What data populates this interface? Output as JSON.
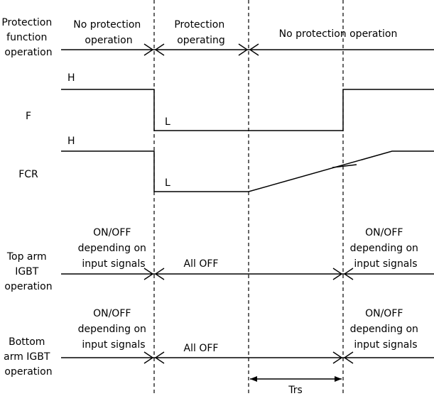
{
  "protection_row": {
    "label": [
      "Protection",
      "function",
      "operation"
    ],
    "phase_1": [
      "No protection",
      "operation"
    ],
    "phase_2": [
      "Protection",
      "operating"
    ],
    "phase_3": "No protection operation"
  },
  "f_signal": {
    "label": "F",
    "high_label": "H",
    "low_label": "L"
  },
  "fcr_signal": {
    "label": "FCR",
    "high_label": "H",
    "low_label": "L"
  },
  "top_arm": {
    "label": [
      "Top arm",
      "IGBT",
      "operation"
    ],
    "state_before": [
      "ON/OFF",
      "depending on",
      "input signals"
    ],
    "state_during": "All OFF",
    "state_after": [
      "ON/OFF",
      "depending on",
      "input signals"
    ]
  },
  "bottom_arm": {
    "label": [
      "Bottom",
      "arm IGBT",
      "operation"
    ],
    "state_before": [
      "ON/OFF",
      "depending on",
      "input signals"
    ],
    "state_during": "All OFF",
    "state_after": [
      "ON/OFF",
      "depending on",
      "input signals"
    ]
  },
  "reset_time": {
    "label": "Trs"
  }
}
